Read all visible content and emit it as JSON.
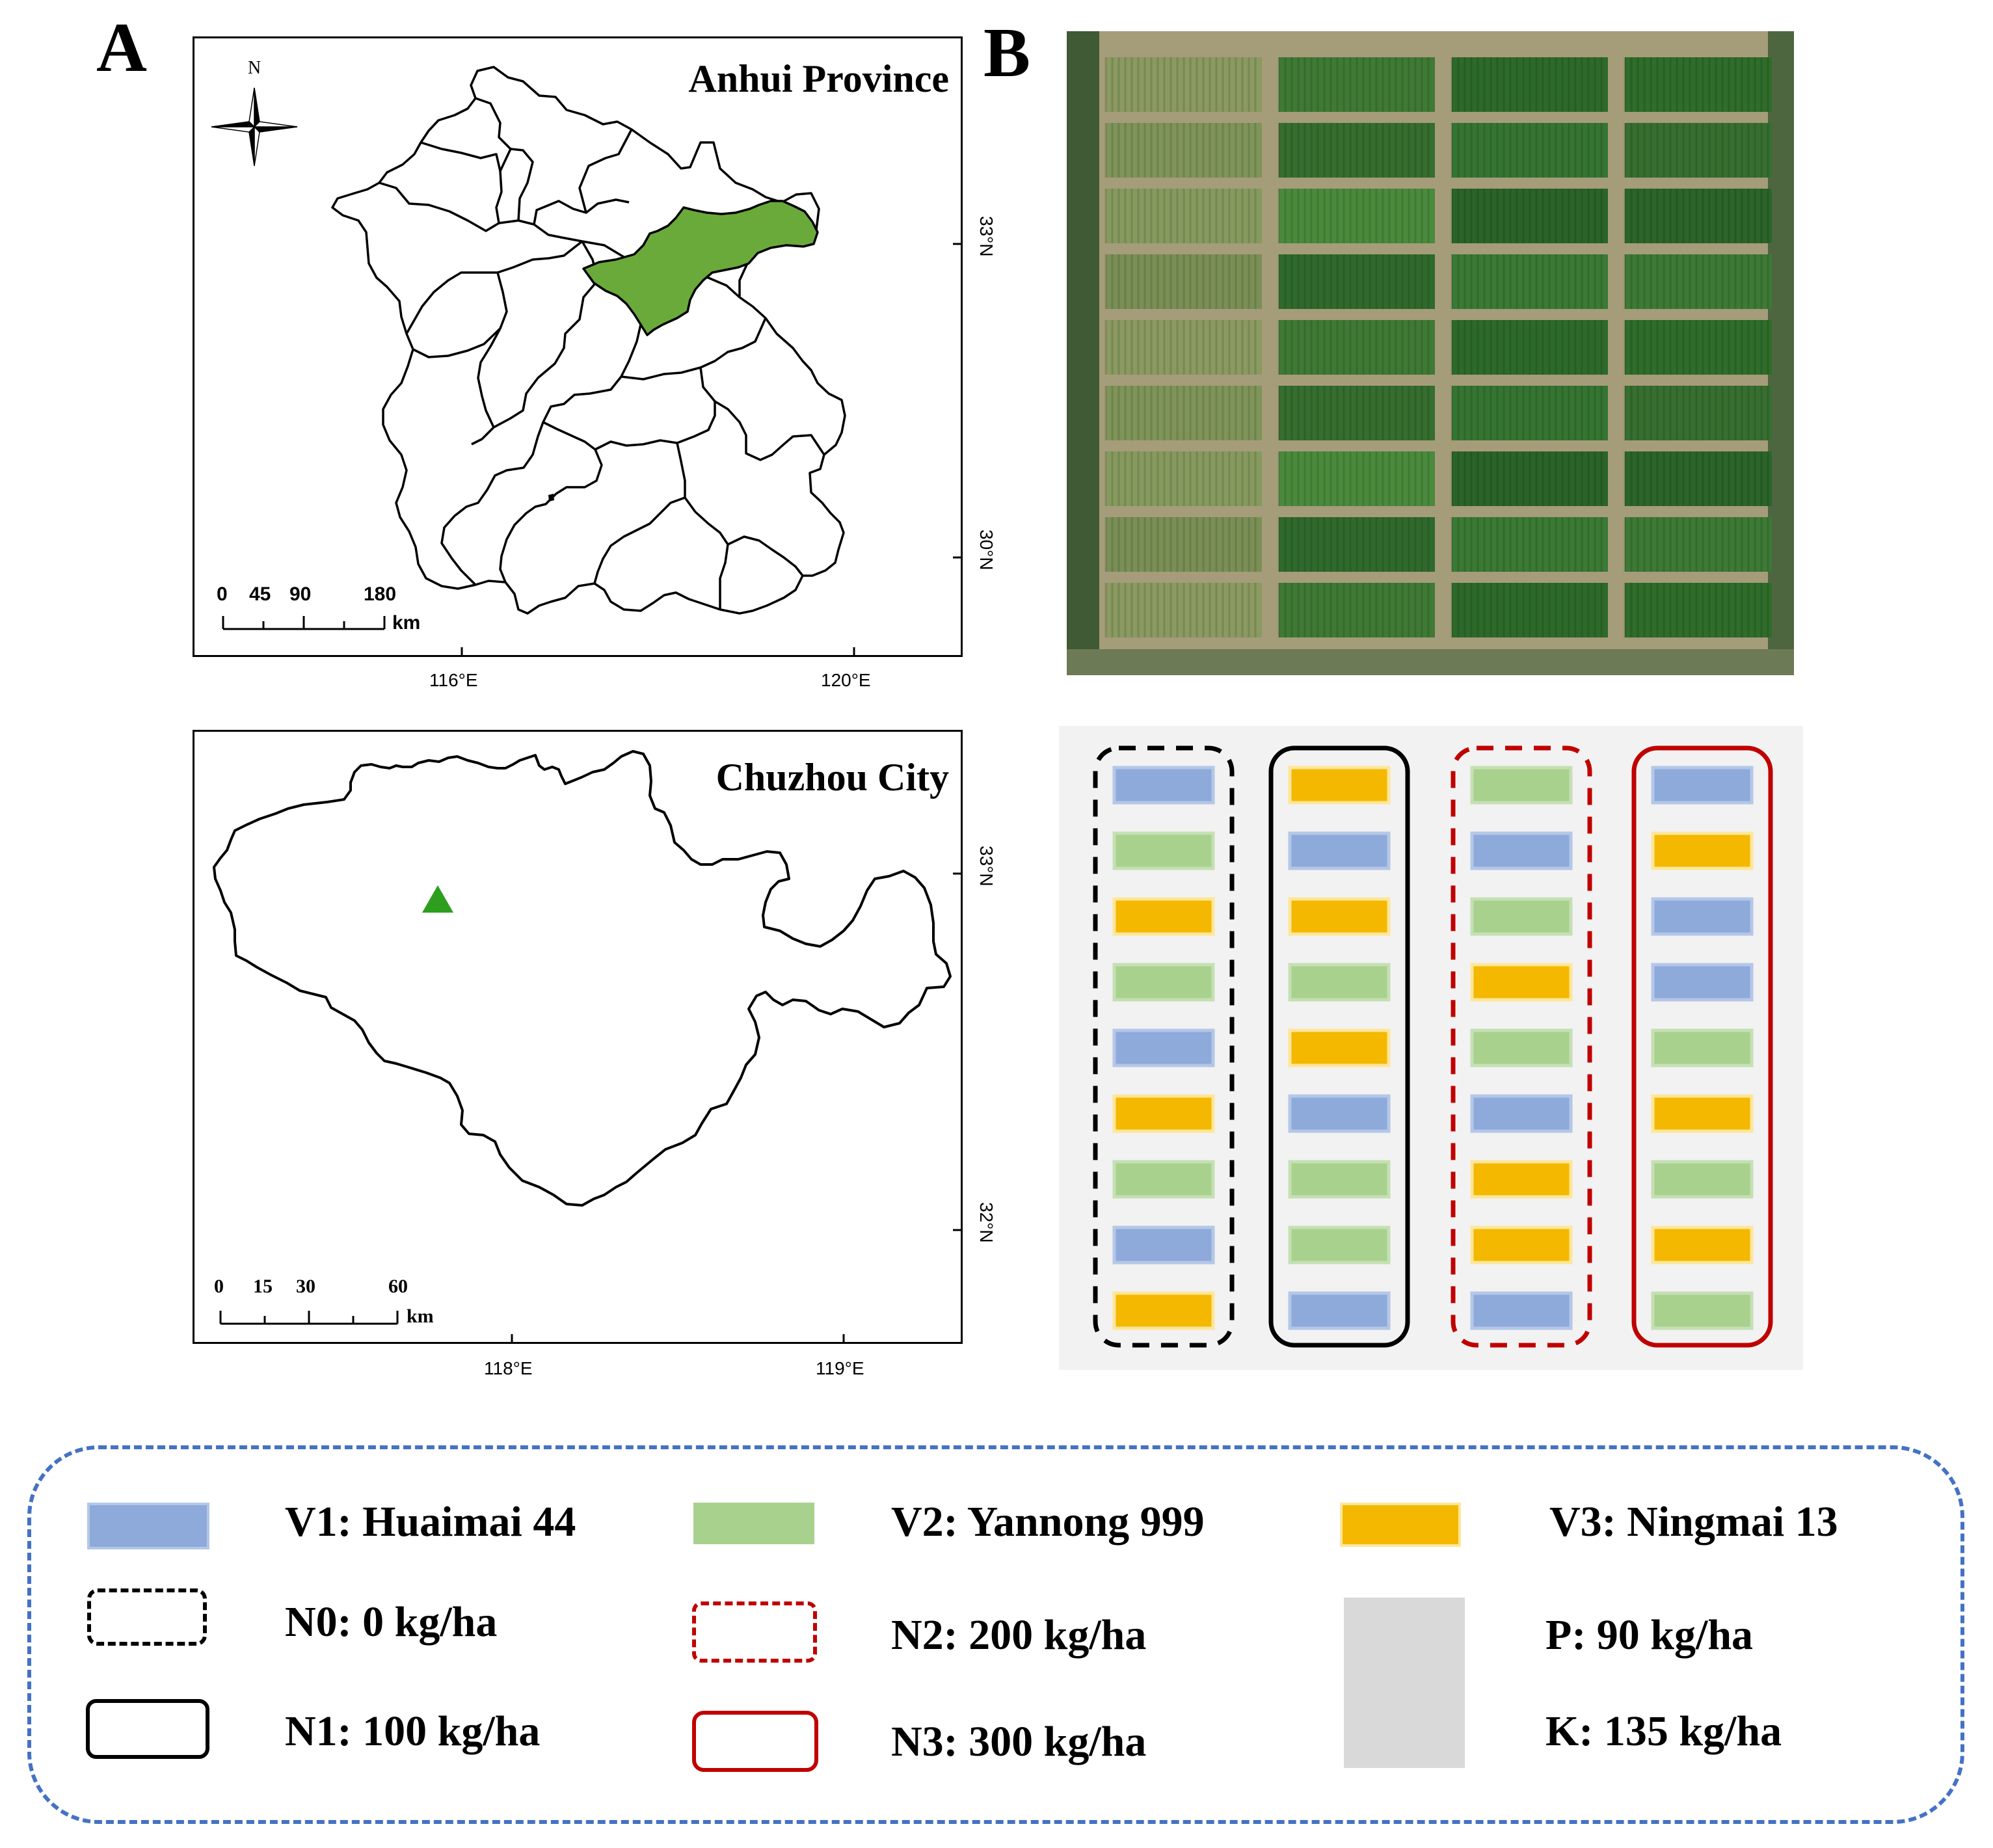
{
  "panels": {
    "a_label": "A",
    "b_label": "B"
  },
  "map_top": {
    "title": "Anhui Province",
    "north_label": "N",
    "x_ticks": [
      "116°E",
      "120°E"
    ],
    "y_ticks": [
      "33°N",
      "30°N"
    ],
    "scale_values": [
      "0",
      "45",
      "90",
      "180"
    ],
    "scale_unit": "km",
    "highlight_color": "#6aaa3a"
  },
  "map_bottom": {
    "title": "Chuzhou City",
    "x_ticks": [
      "118°E",
      "119°E"
    ],
    "y_ticks": [
      "33°N",
      "32°N"
    ],
    "scale_values": [
      "0",
      "15",
      "30",
      "60"
    ],
    "scale_unit": "km",
    "site_marker_color": "#2e9e1f"
  },
  "layout_diagram": {
    "columns": [
      {
        "treatment": "N0",
        "plots": [
          "V1",
          "V2",
          "V3",
          "V2",
          "V1",
          "V3",
          "V2",
          "V1",
          "V3"
        ]
      },
      {
        "treatment": "N1",
        "plots": [
          "V3",
          "V1",
          "V3",
          "V2",
          "V3",
          "V1",
          "V2",
          "V2",
          "V1"
        ]
      },
      {
        "treatment": "N2",
        "plots": [
          "V2",
          "V1",
          "V2",
          "V3",
          "V2",
          "V1",
          "V3",
          "V3",
          "V1"
        ]
      },
      {
        "treatment": "N3",
        "plots": [
          "V1",
          "V3",
          "V1",
          "V1",
          "V2",
          "V3",
          "V2",
          "V3",
          "V2"
        ]
      }
    ]
  },
  "colors": {
    "V1": "#8eaadb",
    "V2": "#a9d18e",
    "V3": "#f4b800",
    "black_border": "#000000",
    "red_border": "#c00000",
    "legend_border": "#4472c4",
    "pk_fill": "#d9d9d9"
  },
  "legend": {
    "v1": "V1: Huaimai 44",
    "v2": "V2: Yannong 999",
    "v3": "V3: Ningmai 13",
    "n0": "N0: 0 kg/ha",
    "n1": "N1: 100 kg/ha",
    "n2": "N2: 200 kg/ha",
    "n3": "N3: 300 kg/ha",
    "p": "P:  90 kg/ha",
    "k": "K: 135 kg/ha"
  }
}
